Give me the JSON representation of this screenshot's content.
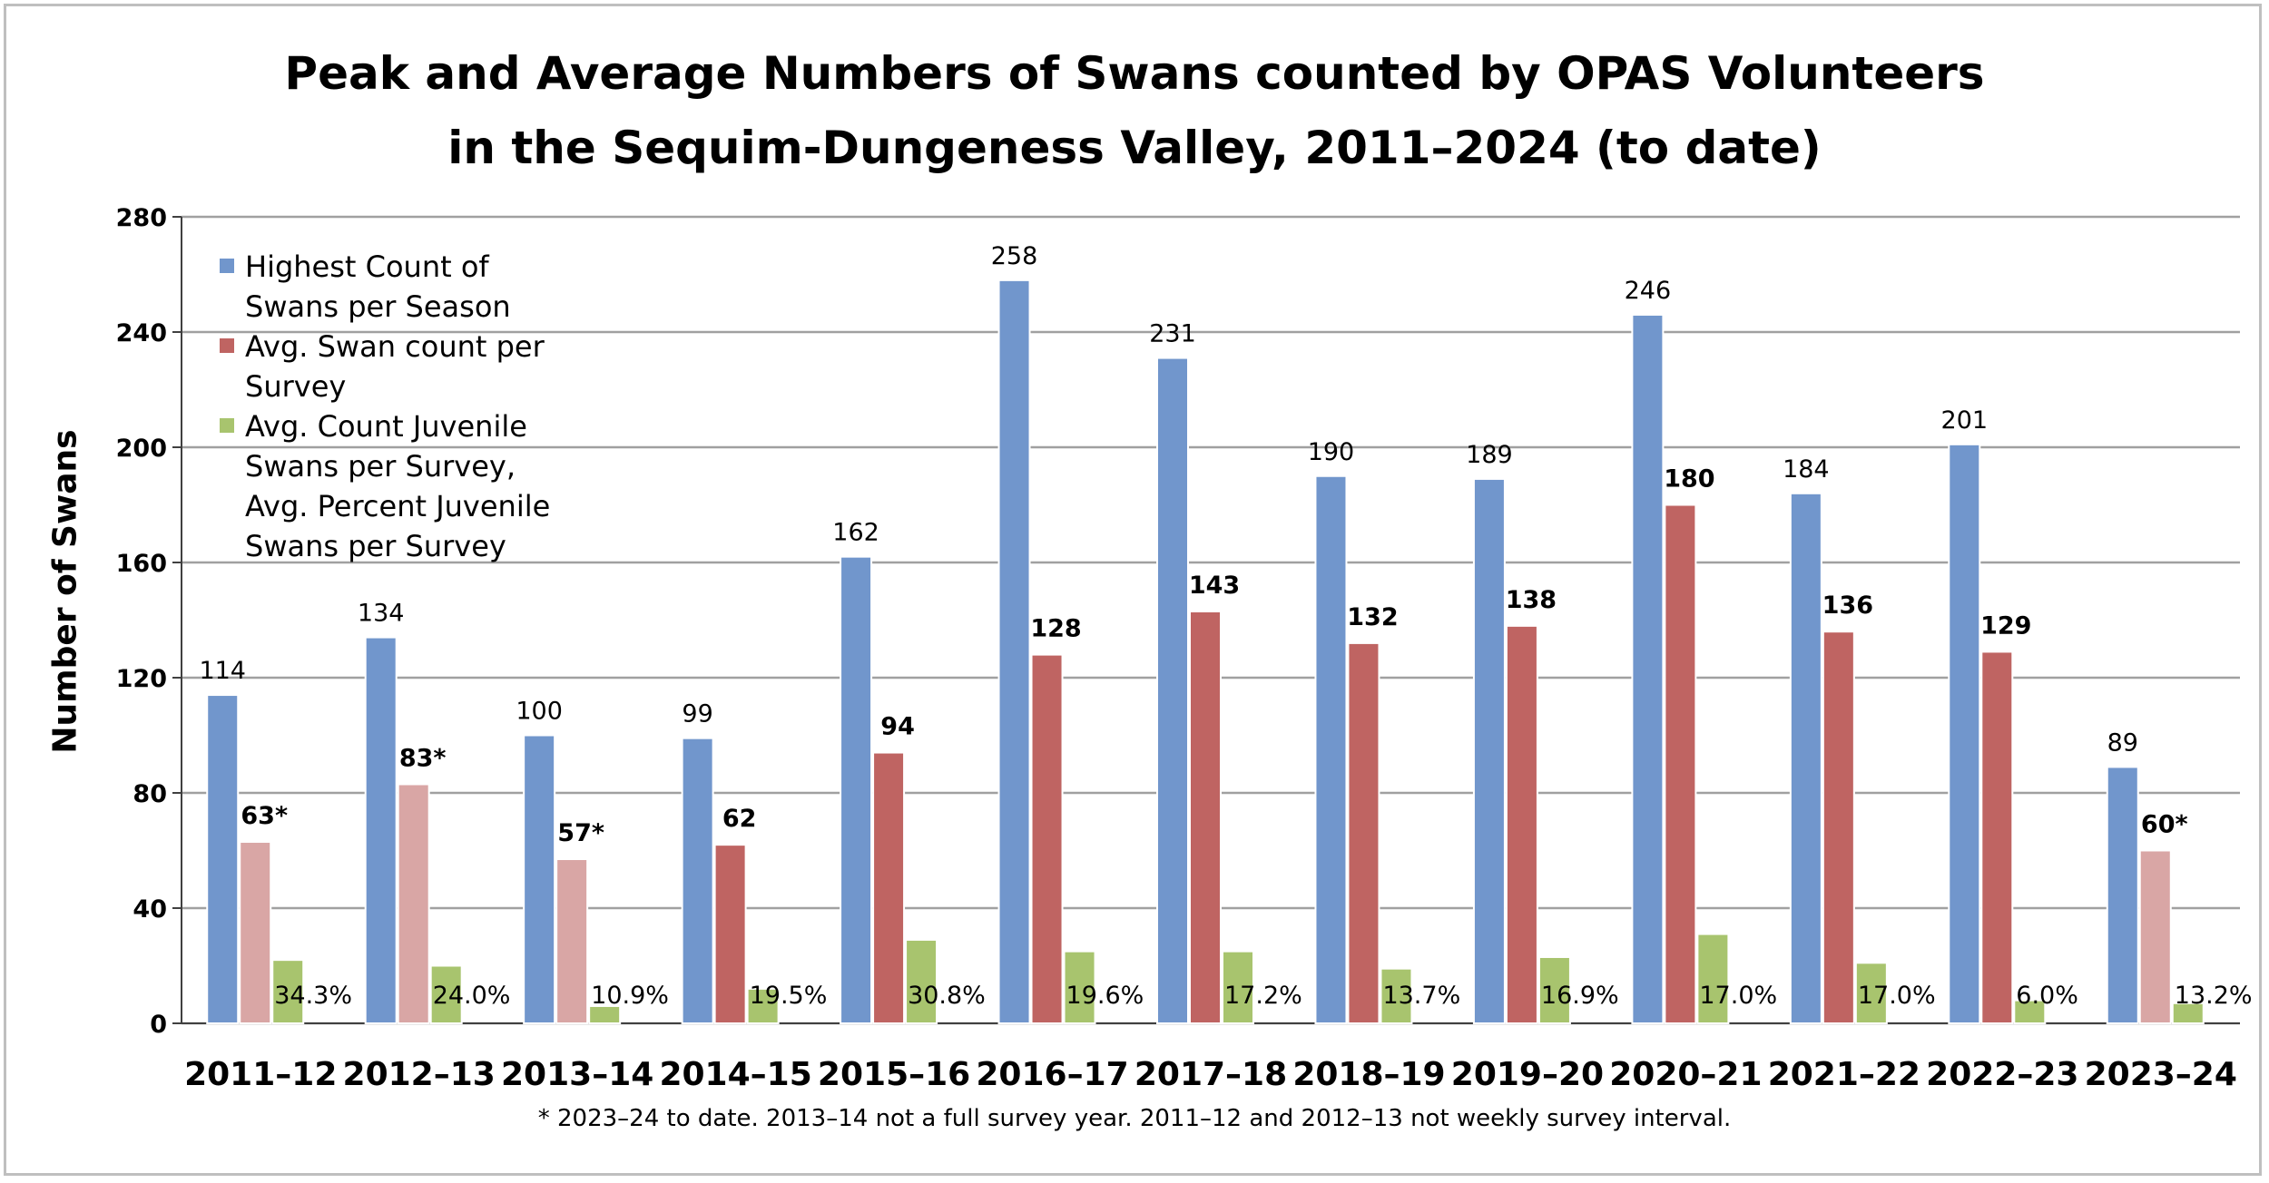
{
  "title_lines": [
    "Peak and Average Numbers of Swans counted by OPAS Volunteers",
    "in the Sequim-Dungeness Valley, 2011–2024 (to date)"
  ],
  "footnote": "* 2023–24 to date.  2013–14 not a full survey year.  2011–12 and 2012–13 not weekly survey interval.",
  "colors": {
    "highest": "#7196cc",
    "avg": "#bf6462",
    "avg_light": "#d9a6a5",
    "juvenile": "#a8c46e",
    "grid": "#a0a0a0"
  },
  "chart_data": {
    "type": "bar",
    "title": "Peak and Average Numbers of Swans counted by OPAS Volunteers in the Sequim-Dungeness Valley, 2011–2024 (to date)",
    "xlabel": "",
    "ylabel": "Number of Swans",
    "ylim": [
      0,
      280
    ],
    "yticks": [
      "0",
      "40",
      "80",
      "120",
      "160",
      "200",
      "240",
      "280"
    ],
    "grid": true,
    "legend_position": "top-left",
    "categories": [
      "2011–12",
      "2012–13",
      "2013–14",
      "2014–15",
      "2015–16",
      "2016–17",
      "2017–18",
      "2018–19",
      "2019–20",
      "2020–21",
      "2021–22",
      "2022–23",
      "2023–24"
    ],
    "series": [
      {
        "name": "Highest Count of Swans per Season",
        "legend_lines": [
          "Highest Count of",
          "Swans per Season"
        ],
        "values": [
          114,
          134,
          100,
          99,
          162,
          258,
          231,
          190,
          189,
          246,
          184,
          201,
          89
        ],
        "labels": [
          "114",
          "134",
          "100",
          "99",
          "162",
          "258",
          "231",
          "190",
          "189",
          "246",
          "184",
          "201",
          "89"
        ]
      },
      {
        "name": "Avg. Swan count per Survey",
        "legend_lines": [
          "Avg. Swan count per",
          "Survey"
        ],
        "values": [
          63,
          83,
          57,
          62,
          94,
          128,
          143,
          132,
          138,
          180,
          136,
          129,
          60
        ],
        "labels": [
          "63*",
          "83*",
          "57*",
          "62",
          "94",
          "128",
          "143",
          "132",
          "138",
          "180",
          "136",
          "129",
          "60*"
        ],
        "light": [
          true,
          true,
          true,
          false,
          false,
          false,
          false,
          false,
          false,
          false,
          false,
          false,
          true
        ]
      },
      {
        "name": "Avg. Count Juvenile Swans per Survey, Avg. Percent Juvenile Swans per Survey",
        "legend_lines": [
          "Avg. Count Juvenile",
          "Swans per Survey,",
          "Avg. Percent Juvenile",
          "Swans per Survey"
        ],
        "values": [
          22,
          20,
          6,
          12,
          29,
          25,
          25,
          19,
          23,
          31,
          21,
          8,
          7
        ],
        "labels": [
          "34.3%",
          "24.0%",
          "10.9%",
          "19.5%",
          "30.8%",
          "19.6%",
          "17.2%",
          "13.7%",
          "16.9%",
          "17.0%",
          "17.0%",
          "6.0%",
          "13.2%"
        ]
      }
    ]
  }
}
